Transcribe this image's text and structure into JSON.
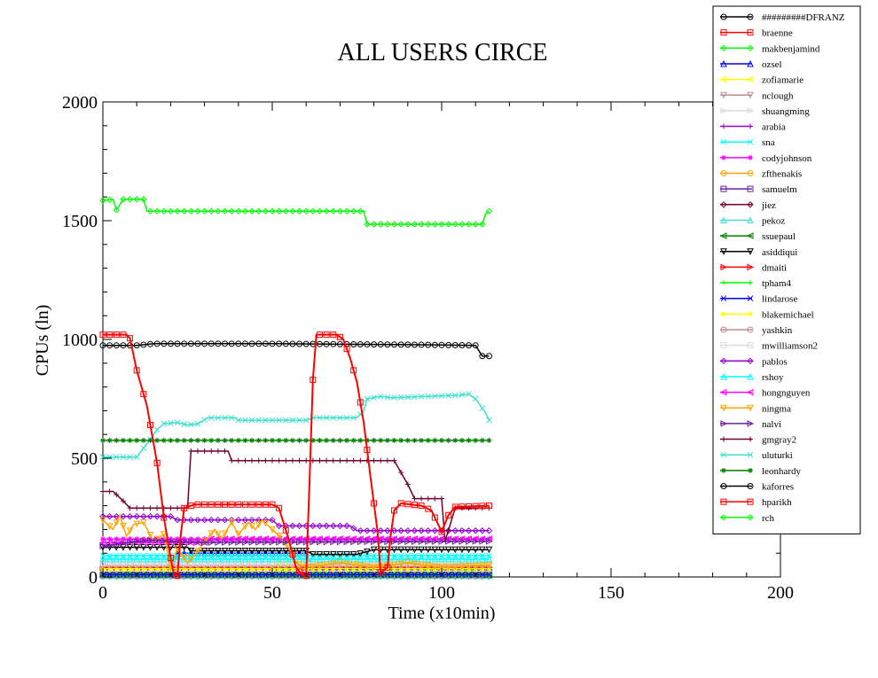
{
  "chart_data": {
    "type": "line",
    "title": "ALL USERS CIRCE",
    "xlabel": "Time (x10min)",
    "ylabel": "CPUs (ln)",
    "xlim": [
      0,
      200
    ],
    "ylim": [
      0,
      2000
    ],
    "xticks": [
      0,
      50,
      100,
      150,
      200
    ],
    "yticks": [
      0,
      500,
      1000,
      1500,
      2000
    ],
    "legend_position": "top-right outside",
    "grid": false,
    "series": [
      {
        "name": "#########DFRANZ",
        "color": "#000000",
        "marker": "circle",
        "points": [
          [
            0,
            20
          ],
          [
            114,
            20
          ]
        ]
      },
      {
        "name": "braenne",
        "color": "#ff0000",
        "marker": "square",
        "points": [
          [
            0,
            10
          ],
          [
            114,
            10
          ]
        ]
      },
      {
        "name": "makbenjamind",
        "color": "#00ff00",
        "marker": "diamond",
        "points": [
          [
            0,
            30
          ],
          [
            114,
            30
          ]
        ]
      },
      {
        "name": "ozsel",
        "color": "#0000ff",
        "marker": "triangle-up",
        "points": [
          [
            0,
            15
          ],
          [
            20,
            15
          ],
          [
            22,
            100
          ],
          [
            60,
            100
          ],
          [
            62,
            30
          ],
          [
            114,
            40
          ]
        ]
      },
      {
        "name": "zofiamarie",
        "color": "#ffff00",
        "marker": "triangle-left",
        "points": [
          [
            0,
            30
          ],
          [
            50,
            30
          ],
          [
            52,
            60
          ],
          [
            114,
            50
          ]
        ]
      },
      {
        "name": "nclough",
        "color": "#bc8f8f",
        "marker": "triangle-down",
        "points": [
          [
            0,
            5
          ],
          [
            114,
            5
          ]
        ]
      },
      {
        "name": "shuangming",
        "color": "#dcdcdc",
        "marker": "triangle-right",
        "points": [
          [
            0,
            25
          ],
          [
            114,
            25
          ]
        ]
      },
      {
        "name": "arabia",
        "color": "#9400d3",
        "marker": "plus",
        "points": [
          [
            0,
            5
          ],
          [
            114,
            5
          ]
        ]
      },
      {
        "name": "sna",
        "color": "#00ffff",
        "marker": "cross",
        "points": [
          [
            0,
            90
          ],
          [
            114,
            90
          ]
        ]
      },
      {
        "name": "codyjohnson",
        "color": "#ff00ff",
        "marker": "star",
        "points": [
          [
            0,
            160
          ],
          [
            114,
            160
          ]
        ]
      },
      {
        "name": "zfthenakis",
        "color": "#ffa500",
        "marker": "circle",
        "points": [
          [
            0,
            10
          ],
          [
            114,
            10
          ]
        ]
      },
      {
        "name": "samuelm",
        "color": "#7020a0",
        "marker": "square",
        "points": [
          [
            0,
            5
          ],
          [
            114,
            5
          ]
        ]
      },
      {
        "name": "jiez",
        "color": "#700030",
        "marker": "diamond",
        "points": [
          [
            0,
            3
          ],
          [
            114,
            3
          ]
        ]
      },
      {
        "name": "pekoz",
        "color": "#40e0d0",
        "marker": "triangle-up",
        "points": [
          [
            0,
            5
          ],
          [
            114,
            5
          ]
        ]
      },
      {
        "name": "ssuepaul",
        "color": "#008000",
        "marker": "triangle-left",
        "points": [
          [
            0,
            8
          ],
          [
            114,
            8
          ]
        ]
      },
      {
        "name": "asiddiqui",
        "color": "#000000",
        "marker": "triangle-down",
        "points": [
          [
            0,
            125
          ],
          [
            25,
            125
          ],
          [
            26,
            110
          ],
          [
            60,
            110
          ],
          [
            62,
            95
          ],
          [
            75,
            95
          ],
          [
            80,
            115
          ],
          [
            114,
            115
          ]
        ]
      },
      {
        "name": "dmaiti",
        "color": "#ff0000",
        "marker": "triangle-right",
        "points": [
          [
            0,
            40
          ],
          [
            114,
            40
          ]
        ]
      },
      {
        "name": "tpham4",
        "color": "#00ff00",
        "marker": "plus",
        "points": [
          [
            0,
            12
          ],
          [
            114,
            12
          ]
        ]
      },
      {
        "name": "lindarose",
        "color": "#0000ff",
        "marker": "cross",
        "points": [
          [
            0,
            10
          ],
          [
            114,
            10
          ]
        ]
      },
      {
        "name": "blakemichael",
        "color": "#ffff00",
        "marker": "star",
        "points": [
          [
            0,
            35
          ],
          [
            114,
            35
          ]
        ]
      },
      {
        "name": "yashkin",
        "color": "#bc8f8f",
        "marker": "circle",
        "points": [
          [
            0,
            50
          ],
          [
            114,
            50
          ]
        ]
      },
      {
        "name": "mwilliamson2",
        "color": "#dcdcdc",
        "marker": "square",
        "points": [
          [
            0,
            60
          ],
          [
            114,
            60
          ]
        ]
      },
      {
        "name": "pablos",
        "color": "#9400d3",
        "marker": "diamond",
        "points": [
          [
            0,
            255
          ],
          [
            20,
            255
          ],
          [
            22,
            240
          ],
          [
            50,
            240
          ],
          [
            52,
            215
          ],
          [
            73,
            215
          ],
          [
            75,
            195
          ],
          [
            114,
            195
          ]
        ]
      },
      {
        "name": "rshoy",
        "color": "#00ffff",
        "marker": "triangle-up",
        "points": [
          [
            0,
            75
          ],
          [
            114,
            75
          ]
        ]
      },
      {
        "name": "hongnguyen",
        "color": "#ff00ff",
        "marker": "triangle-left",
        "points": [
          [
            0,
            145
          ],
          [
            30,
            145
          ],
          [
            32,
            160
          ],
          [
            114,
            160
          ]
        ]
      },
      {
        "name": "ningma",
        "color": "#ffa500",
        "marker": "triangle-down",
        "points": [
          [
            0,
            240
          ],
          [
            3,
            200
          ],
          [
            5,
            260
          ],
          [
            7,
            170
          ],
          [
            9,
            220
          ],
          [
            12,
            230
          ],
          [
            15,
            150
          ],
          [
            18,
            180
          ],
          [
            20,
            40
          ],
          [
            22,
            120
          ],
          [
            25,
            60
          ],
          [
            27,
            90
          ],
          [
            30,
            150
          ],
          [
            33,
            200
          ],
          [
            35,
            160
          ],
          [
            38,
            230
          ],
          [
            40,
            180
          ],
          [
            43,
            230
          ],
          [
            45,
            200
          ],
          [
            47,
            240
          ],
          [
            50,
            200
          ],
          [
            53,
            160
          ],
          [
            55,
            120
          ],
          [
            57,
            60
          ],
          [
            60,
            40
          ],
          [
            70,
            60
          ],
          [
            80,
            40
          ],
          [
            90,
            60
          ],
          [
            100,
            40
          ],
          [
            114,
            50
          ]
        ]
      },
      {
        "name": "nalvi",
        "color": "#7020a0",
        "marker": "triangle-right",
        "points": [
          [
            0,
            130
          ],
          [
            5,
            140
          ],
          [
            10,
            150
          ],
          [
            15,
            155
          ],
          [
            20,
            150
          ],
          [
            30,
            145
          ],
          [
            114,
            150
          ]
        ]
      },
      {
        "name": "gmgray2",
        "color": "#700030",
        "marker": "plus",
        "points": [
          [
            0,
            360
          ],
          [
            3,
            360
          ],
          [
            6,
            320
          ],
          [
            8,
            290
          ],
          [
            25,
            290
          ],
          [
            26,
            530
          ],
          [
            37,
            530
          ],
          [
            38,
            490
          ],
          [
            86,
            490
          ],
          [
            90,
            390
          ],
          [
            92,
            330
          ],
          [
            100,
            330
          ],
          [
            101,
            150
          ],
          [
            104,
            290
          ],
          [
            114,
            290
          ]
        ]
      },
      {
        "name": "uluturki",
        "color": "#40e0d0",
        "marker": "cross",
        "points": [
          [
            0,
            505
          ],
          [
            5,
            505
          ],
          [
            10,
            505
          ],
          [
            14,
            580
          ],
          [
            16,
            620
          ],
          [
            18,
            645
          ],
          [
            22,
            650
          ],
          [
            25,
            640
          ],
          [
            28,
            645
          ],
          [
            31,
            670
          ],
          [
            39,
            670
          ],
          [
            40,
            660
          ],
          [
            60,
            660
          ],
          [
            62,
            670
          ],
          [
            75,
            670
          ],
          [
            77,
            700
          ],
          [
            78,
            750
          ],
          [
            82,
            760
          ],
          [
            85,
            755
          ],
          [
            105,
            765
          ],
          [
            108,
            770
          ],
          [
            110,
            750
          ],
          [
            113,
            690
          ],
          [
            114,
            660
          ]
        ]
      },
      {
        "name": "leonhardy",
        "color": "#008000",
        "marker": "star",
        "points": [
          [
            0,
            575
          ],
          [
            114,
            575
          ]
        ]
      },
      {
        "name": "kaforres",
        "color": "#000000",
        "marker": "circle",
        "points": [
          [
            0,
            975
          ],
          [
            10,
            975
          ],
          [
            15,
            982
          ],
          [
            50,
            982
          ],
          [
            70,
            980
          ],
          [
            90,
            978
          ],
          [
            110,
            975
          ],
          [
            112,
            930
          ],
          [
            114,
            930
          ]
        ]
      },
      {
        "name": "hparikh",
        "color": "#ff0000",
        "marker": "square",
        "points": [
          [
            0,
            1020
          ],
          [
            7,
            1020
          ],
          [
            8,
            1005
          ],
          [
            10,
            870
          ],
          [
            13,
            720
          ],
          [
            16,
            480
          ],
          [
            18,
            250
          ],
          [
            20,
            80
          ],
          [
            21,
            10
          ],
          [
            22,
            5
          ],
          [
            23,
            180
          ],
          [
            24,
            290
          ],
          [
            27,
            305
          ],
          [
            50,
            305
          ],
          [
            52,
            290
          ],
          [
            55,
            150
          ],
          [
            57,
            40
          ],
          [
            59,
            5
          ],
          [
            60,
            5
          ],
          [
            61,
            400
          ],
          [
            62,
            830
          ],
          [
            63,
            1020
          ],
          [
            69,
            1020
          ],
          [
            71,
            1000
          ],
          [
            73,
            920
          ],
          [
            75,
            820
          ],
          [
            77,
            650
          ],
          [
            79,
            420
          ],
          [
            81,
            200
          ],
          [
            82,
            20
          ],
          [
            84,
            40
          ],
          [
            85,
            180
          ],
          [
            86,
            280
          ],
          [
            88,
            310
          ],
          [
            94,
            300
          ],
          [
            97,
            280
          ],
          [
            99,
            220
          ],
          [
            100,
            190
          ],
          [
            102,
            260
          ],
          [
            104,
            295
          ],
          [
            114,
            300
          ]
        ]
      },
      {
        "name": "rch",
        "color": "#00ff00",
        "marker": "diamond",
        "points": [
          [
            0,
            1585
          ],
          [
            3,
            1590
          ],
          [
            4,
            1545
          ],
          [
            6,
            1590
          ],
          [
            12,
            1590
          ],
          [
            13,
            1540
          ],
          [
            77,
            1540
          ],
          [
            78,
            1485
          ],
          [
            112,
            1485
          ],
          [
            113,
            1530
          ],
          [
            114,
            1540
          ]
        ]
      }
    ]
  }
}
